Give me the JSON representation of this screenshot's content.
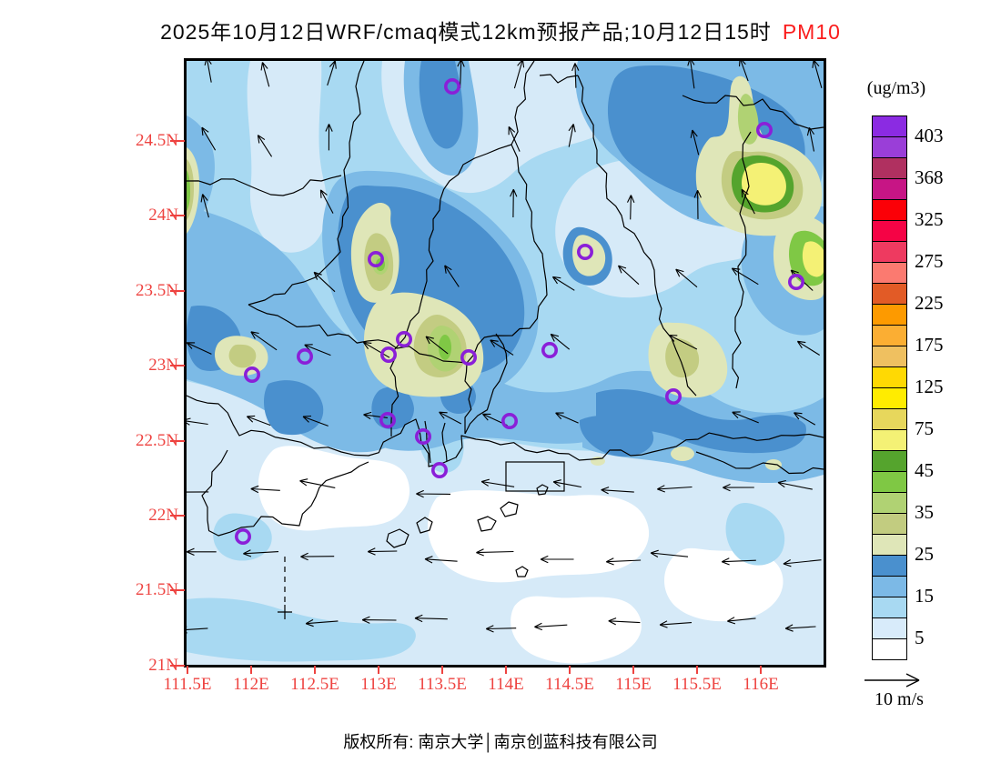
{
  "title": {
    "main": "2025年10月12日WRF/cmaq模式12km预报产品;10月12日15时",
    "species": "PM10",
    "species_color": "#fa1d1d"
  },
  "axes": {
    "lat_labels": [
      "24.5N",
      "24N",
      "23.5N",
      "23N",
      "22.5N",
      "22N",
      "21.5N",
      "21N"
    ],
    "lon_labels": [
      "111.5E",
      "112E",
      "112.5E",
      "113E",
      "113.5E",
      "114E",
      "114.5E",
      "115E",
      "115.5E",
      "116E"
    ],
    "label_color": "#ee4340"
  },
  "colorbar": {
    "units": "(ug/m3)",
    "labels": [
      "403",
      "368",
      "325",
      "275",
      "225",
      "175",
      "125",
      "75",
      "45",
      "35",
      "25",
      "15",
      "5"
    ],
    "colors": [
      "#8b2be2",
      "#9a3ed8",
      "#b03060",
      "#c71585",
      "#fb0007",
      "#f50345",
      "#ee3a60",
      "#fb7a70",
      "#e25b26",
      "#fd9a00",
      "#fbae33",
      "#efc060",
      "#ffd903",
      "#ffec00",
      "#e7d75c",
      "#f4f175",
      "#55a42d",
      "#7fc844",
      "#b0d273",
      "#c2cc80",
      "#dfe6b8",
      "#4a90ce",
      "#7cb9e6",
      "#a8d9f2",
      "#d8ebfa",
      "#ffffff"
    ]
  },
  "wind_legend": {
    "label": "10 m/s"
  },
  "map": {
    "station_marker_color": "#8a1fd8"
  },
  "footer": {
    "copyright": "版权所有: 南京大学│南京创蓝科技有限公司"
  }
}
